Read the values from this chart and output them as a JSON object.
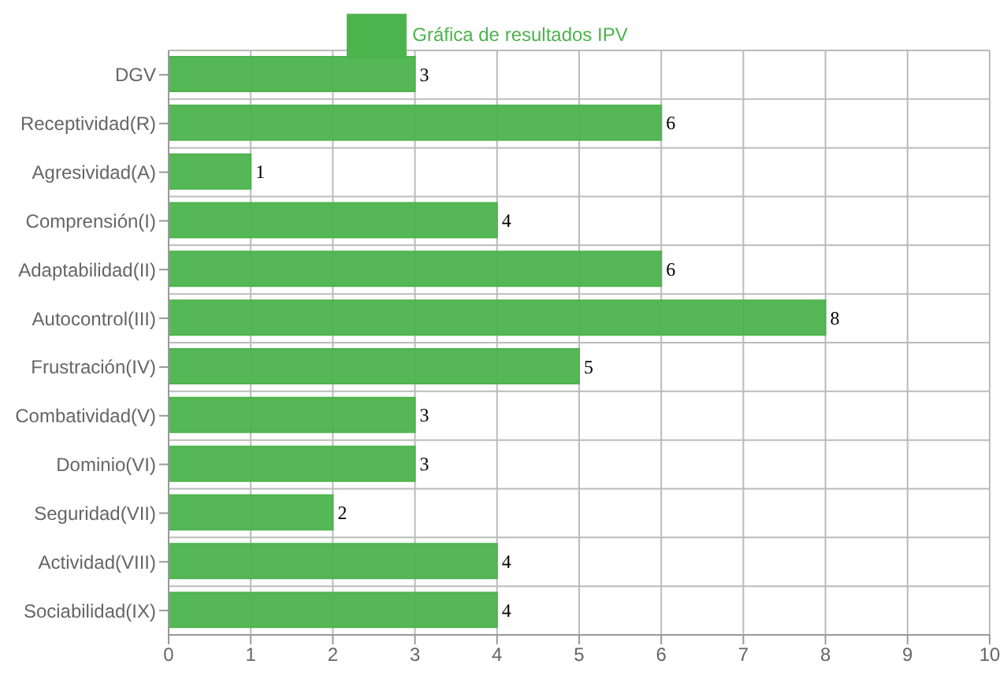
{
  "chart_data": {
    "type": "bar",
    "orientation": "horizontal",
    "categories": [
      "DGV",
      "Receptividad(R)",
      "Agresividad(A)",
      "Comprensión(I)",
      "Adaptabilidad(II)",
      "Autocontrol(III)",
      "Frustración(IV)",
      "Combatividad(V)",
      "Dominio(VI)",
      "Seguridad(VII)",
      "Actividad(VIII)",
      "Sociabilidad(IX)"
    ],
    "series": [
      {
        "name": "Gráfica de resultados IPV",
        "color": "#4db34d",
        "values": [
          3,
          6,
          1,
          4,
          6,
          8,
          5,
          3,
          3,
          2,
          4,
          4
        ]
      }
    ],
    "xlim": [
      0,
      10
    ],
    "xticks": [
      0,
      1,
      2,
      3,
      4,
      5,
      6,
      7,
      8,
      9,
      10
    ],
    "grid": true,
    "legend": "top",
    "data_labels": true
  }
}
